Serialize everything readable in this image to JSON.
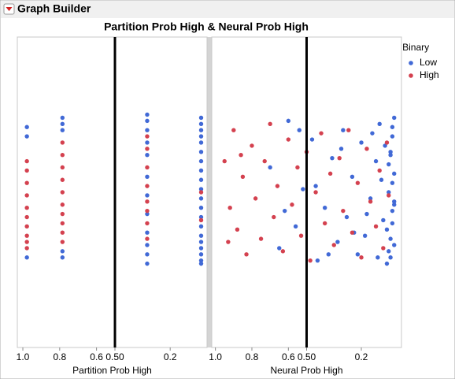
{
  "header": {
    "title": "Graph Builder"
  },
  "chart_data": {
    "type": "scatter",
    "title": "Partition Prob High & Neural Prob High",
    "legend": {
      "title": "Y Binary",
      "position": "right"
    },
    "series": [
      {
        "name": "Low",
        "color": "#4169d6"
      },
      {
        "name": "High",
        "color": "#d4414f"
      }
    ],
    "ylim": [
      0,
      1
    ],
    "panels": [
      {
        "xlabel": "Partition Prob High",
        "xlim": [
          1.03,
          0.0
        ],
        "reference_line": 0.5,
        "xticks": [
          {
            "value": 1.0,
            "label": "1.0"
          },
          0.8,
          0.6,
          {
            "value": 0.5,
            "label": "0.50"
          },
          0.2
        ],
        "series": [
          {
            "x": [
              0.978,
              0.978,
              0.978,
              0.785,
              0.785,
              0.785,
              0.785,
              0.785,
              0.325,
              0.325,
              0.325,
              0.325,
              0.325,
              0.325,
              0.325,
              0.325,
              0.325,
              0.325,
              0.325,
              0.325,
              0.032,
              0.032,
              0.032,
              0.032,
              0.032,
              0.032,
              0.032,
              0.032,
              0.032,
              0.032,
              0.032,
              0.032,
              0.032,
              0.032,
              0.032,
              0.032,
              0.032,
              0.032,
              0.032,
              0.032
            ],
            "y": [
              0.71,
              0.68,
              0.29,
              0.74,
              0.72,
              0.7,
              0.31,
              0.29,
              0.75,
              0.73,
              0.7,
              0.66,
              0.62,
              0.55,
              0.49,
              0.43,
              0.37,
              0.33,
              0.3,
              0.27,
              0.74,
              0.72,
              0.7,
              0.68,
              0.66,
              0.63,
              0.6,
              0.57,
              0.54,
              0.51,
              0.48,
              0.45,
              0.42,
              0.39,
              0.36,
              0.34,
              0.32,
              0.3,
              0.28,
              0.27
            ]
          },
          {
            "x": [
              0.978,
              0.978,
              0.978,
              0.978,
              0.978,
              0.978,
              0.978,
              0.978,
              0.978,
              0.978,
              0.785,
              0.785,
              0.785,
              0.785,
              0.785,
              0.785,
              0.785,
              0.785,
              0.785,
              0.785,
              0.325,
              0.325,
              0.325,
              0.325,
              0.325,
              0.325,
              0.325,
              0.325,
              0.032,
              0.032
            ],
            "y": [
              0.6,
              0.57,
              0.53,
              0.49,
              0.45,
              0.42,
              0.39,
              0.36,
              0.34,
              0.32,
              0.66,
              0.62,
              0.58,
              0.54,
              0.5,
              0.46,
              0.43,
              0.4,
              0.37,
              0.34,
              0.68,
              0.64,
              0.58,
              0.52,
              0.47,
              0.44,
              0.4,
              0.35,
              0.5,
              0.41
            ]
          }
        ]
      },
      {
        "xlabel": "Neural Prob High",
        "xlim": [
          1.02,
          -0.02
        ],
        "reference_line": 0.5,
        "xticks": [
          {
            "value": 1.0,
            "label": "1.0"
          },
          0.8,
          0.6,
          {
            "value": 0.5,
            "label": "0.50"
          },
          0.2
        ],
        "series": [
          {
            "x": [
              0.02,
              0.03,
              0.04,
              0.02,
              0.05,
              0.03,
              0.06,
              0.02,
              0.04,
              0.03,
              0.07,
              0.05,
              0.02,
              0.08,
              0.04,
              0.03,
              0.06,
              0.1,
              0.12,
              0.15,
              0.18,
              0.2,
              0.22,
              0.25,
              0.28,
              0.3,
              0.33,
              0.36,
              0.4,
              0.44,
              0.47,
              0.52,
              0.56,
              0.6,
              0.65,
              0.7,
              0.02,
              0.03,
              0.05,
              0.04,
              0.09,
              0.11,
              0.14,
              0.17,
              0.24,
              0.31,
              0.38,
              0.45,
              0.54,
              0.62
            ],
            "y": [
              0.74,
              0.68,
              0.62,
              0.56,
              0.5,
              0.44,
              0.38,
              0.33,
              0.29,
              0.71,
              0.65,
              0.59,
              0.47,
              0.41,
              0.35,
              0.53,
              0.27,
              0.72,
              0.6,
              0.48,
              0.36,
              0.66,
              0.3,
              0.55,
              0.42,
              0.7,
              0.34,
              0.61,
              0.45,
              0.28,
              0.67,
              0.51,
              0.39,
              0.73,
              0.32,
              0.58,
              0.46,
              0.4,
              0.31,
              0.63,
              0.54,
              0.29,
              0.69,
              0.43,
              0.37,
              0.64,
              0.3,
              0.52,
              0.7,
              0.44
            ]
          },
          {
            "x": [
              0.95,
              0.92,
              0.9,
              0.88,
              0.85,
              0.83,
              0.8,
              0.78,
              0.75,
              0.73,
              0.7,
              0.68,
              0.66,
              0.63,
              0.6,
              0.58,
              0.55,
              0.53,
              0.5,
              0.48,
              0.45,
              0.42,
              0.4,
              0.37,
              0.35,
              0.32,
              0.3,
              0.27,
              0.25,
              0.22,
              0.2,
              0.17,
              0.15,
              0.12,
              0.1,
              0.08,
              0.06,
              0.05,
              0.93,
              0.86
            ],
            "y": [
              0.6,
              0.45,
              0.7,
              0.38,
              0.55,
              0.3,
              0.65,
              0.48,
              0.35,
              0.6,
              0.72,
              0.42,
              0.52,
              0.31,
              0.67,
              0.46,
              0.58,
              0.36,
              0.63,
              0.28,
              0.5,
              0.69,
              0.4,
              0.56,
              0.33,
              0.61,
              0.44,
              0.7,
              0.37,
              0.53,
              0.29,
              0.64,
              0.47,
              0.39,
              0.57,
              0.32,
              0.66,
              0.49,
              0.34,
              0.62
            ]
          }
        ]
      }
    ]
  }
}
